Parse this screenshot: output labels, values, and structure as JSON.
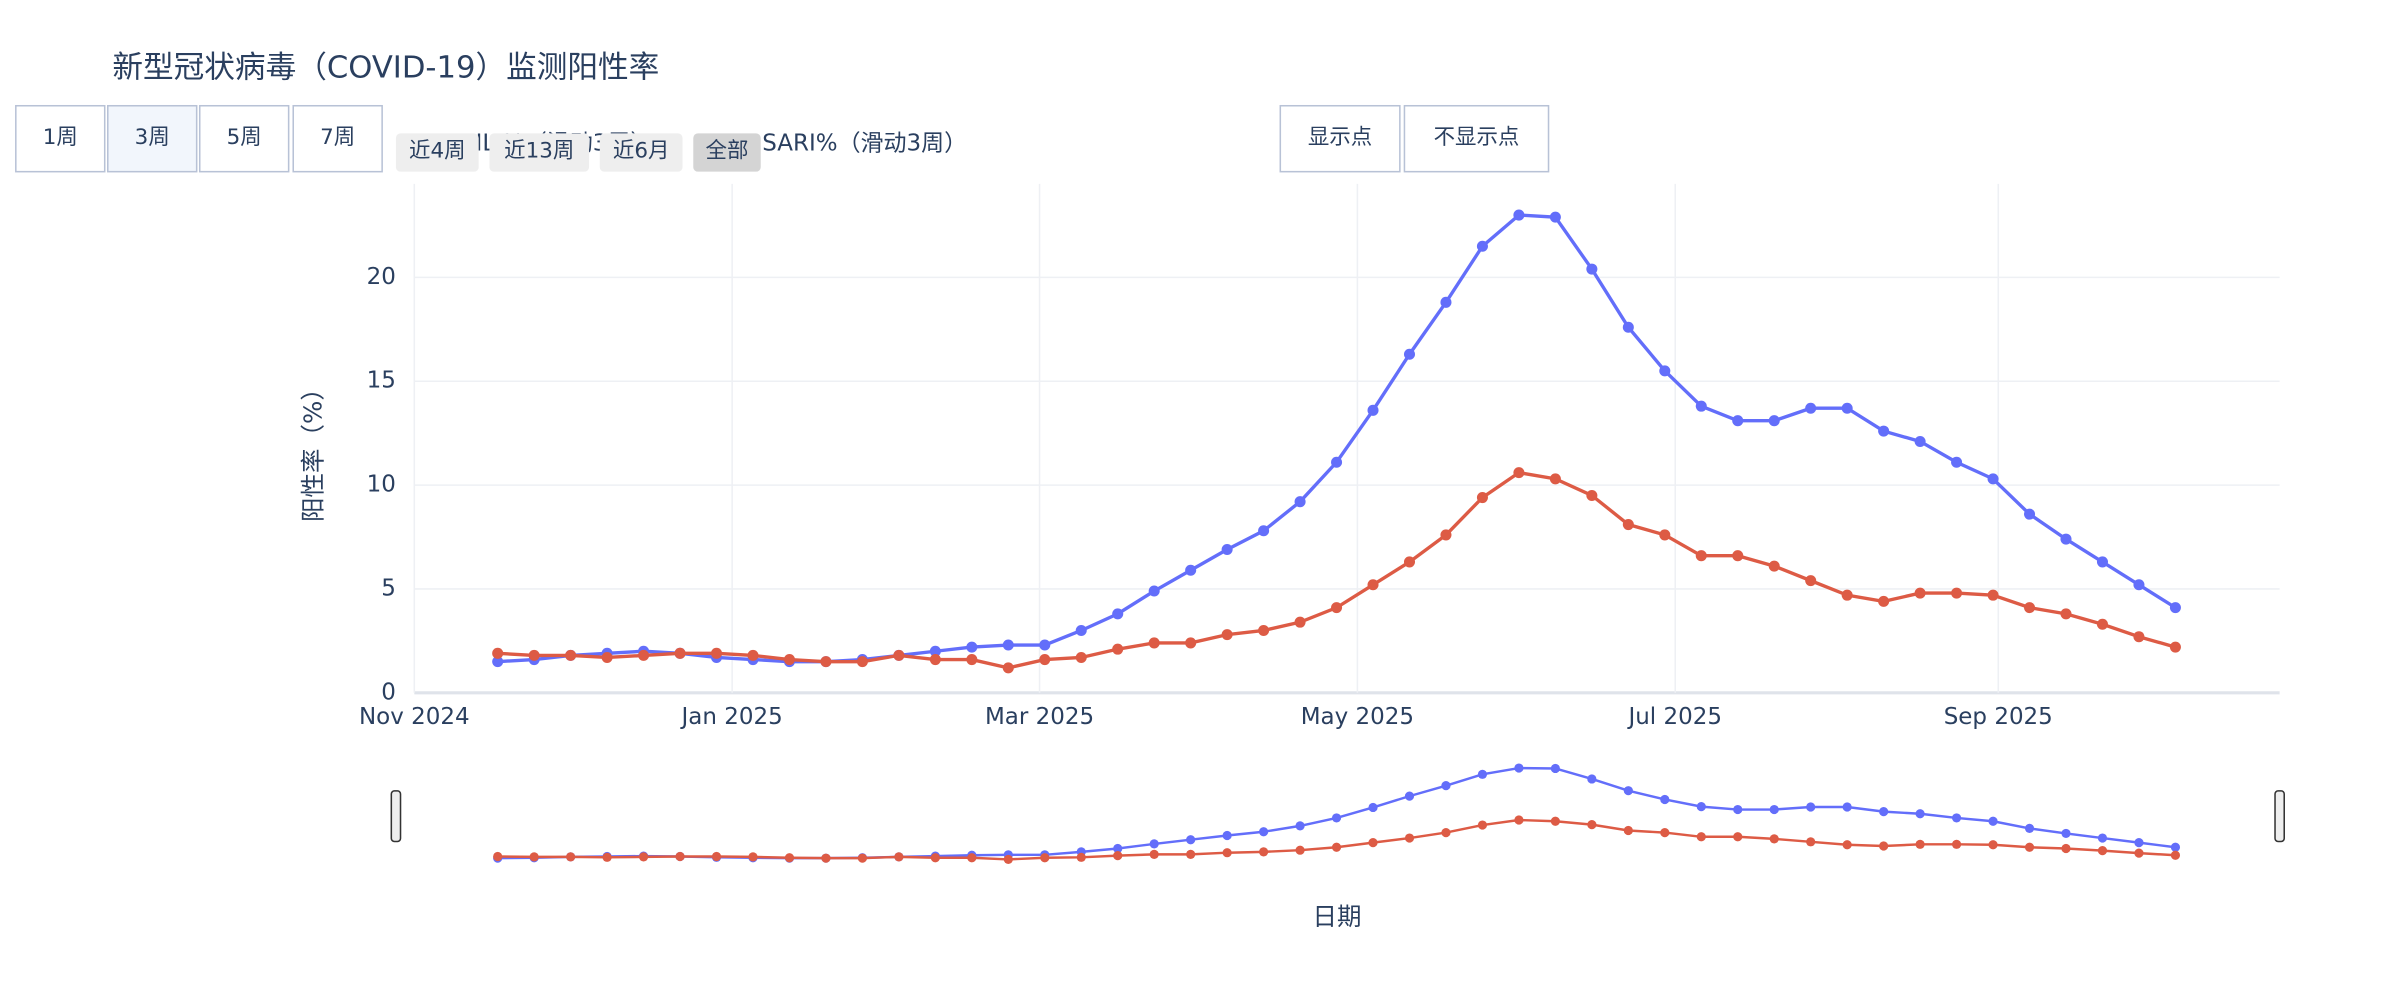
{
  "title": "新型冠状病毒（COVID-19）监测阳性率",
  "buttons": {
    "weeks": [
      "1周",
      "3周",
      "5周",
      "7周"
    ],
    "active_week": 1,
    "ranges": [
      "近4周",
      "近13周",
      "近6月",
      "全部"
    ],
    "active_range": 3,
    "points": [
      "显示点",
      "不显示点"
    ]
  },
  "chart_data": {
    "type": "line",
    "x_label": "日期",
    "y_label": "阳性率（%）",
    "x": [
      "2024-11-17",
      "2024-11-24",
      "2024-12-01",
      "2024-12-08",
      "2024-12-15",
      "2024-12-22",
      "2024-12-29",
      "2025-01-05",
      "2025-01-12",
      "2025-01-19",
      "2025-01-26",
      "2025-02-02",
      "2025-02-09",
      "2025-02-16",
      "2025-02-23",
      "2025-03-02",
      "2025-03-09",
      "2025-03-16",
      "2025-03-23",
      "2025-03-30",
      "2025-04-06",
      "2025-04-13",
      "2025-04-20",
      "2025-04-27",
      "2025-05-04",
      "2025-05-11",
      "2025-05-18",
      "2025-05-25",
      "2025-06-01",
      "2025-06-08",
      "2025-06-15",
      "2025-06-22",
      "2025-06-29",
      "2025-07-06",
      "2025-07-13",
      "2025-07-20",
      "2025-07-27",
      "2025-08-03",
      "2025-08-10",
      "2025-08-17",
      "2025-08-24",
      "2025-08-31",
      "2025-09-07",
      "2025-09-14",
      "2025-09-21",
      "2025-09-28",
      "2025-10-05"
    ],
    "series": [
      {
        "name": "ILI%（滑动3周）",
        "color": "#636efa",
        "values": [
          1.5,
          1.6,
          1.8,
          1.9,
          2.0,
          1.9,
          1.7,
          1.6,
          1.5,
          1.5,
          1.6,
          1.8,
          2.0,
          2.2,
          2.3,
          2.3,
          3.0,
          3.8,
          4.9,
          5.9,
          6.9,
          7.8,
          9.2,
          11.1,
          13.6,
          16.3,
          18.8,
          21.5,
          23.0,
          22.9,
          20.4,
          17.6,
          15.5,
          13.8,
          13.1,
          13.1,
          13.7,
          13.7,
          12.6,
          12.1,
          11.1,
          10.3,
          8.6,
          7.4,
          6.3,
          5.2,
          4.1
        ]
      },
      {
        "name": "SARI%（滑动3周）",
        "color": "#dd5b45",
        "values": [
          1.9,
          1.8,
          1.8,
          1.7,
          1.8,
          1.9,
          1.9,
          1.8,
          1.6,
          1.5,
          1.5,
          1.8,
          1.6,
          1.6,
          1.2,
          1.6,
          1.7,
          2.1,
          2.4,
          2.4,
          2.8,
          3.0,
          3.4,
          4.1,
          5.2,
          6.3,
          7.6,
          9.4,
          10.6,
          10.3,
          9.5,
          8.1,
          7.6,
          6.6,
          6.6,
          6.1,
          5.4,
          4.7,
          4.4,
          4.8,
          4.8,
          4.7,
          4.1,
          3.8,
          3.3,
          2.7,
          2.2
        ]
      }
    ],
    "xlim": [
      "2024-11-01",
      "2025-10-25"
    ],
    "xticks": [
      {
        "value": "2024-11-01",
        "label": "Nov 2024"
      },
      {
        "value": "2025-01-01",
        "label": "Jan 2025"
      },
      {
        "value": "2025-03-01",
        "label": "Mar 2025"
      },
      {
        "value": "2025-05-01",
        "label": "May 2025"
      },
      {
        "value": "2025-07-01",
        "label": "Jul 2025"
      },
      {
        "value": "2025-09-01",
        "label": "Sep 2025"
      }
    ],
    "ylim": [
      0,
      24.5
    ],
    "yticks": [
      0,
      5,
      10,
      15,
      20
    ],
    "grid": true,
    "markers": true,
    "rangeslider": true
  }
}
